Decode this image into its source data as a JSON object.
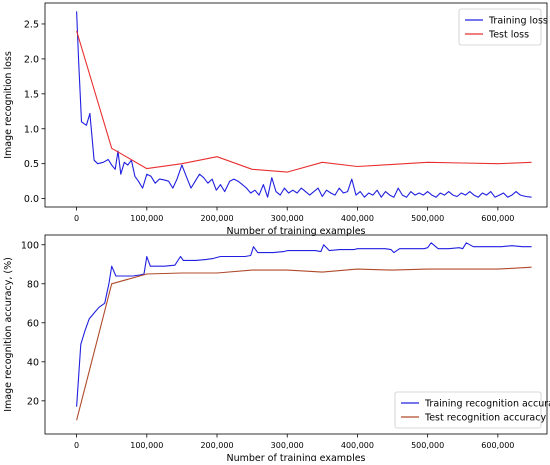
{
  "chart_data": [
    {
      "type": "line",
      "xlabel": "Number of training examples",
      "ylabel": "Image recognition loss",
      "xlim": [
        -45000,
        670000
      ],
      "ylim": [
        -0.12,
        2.8
      ],
      "xticks": [
        0,
        100000,
        200000,
        300000,
        400000,
        500000,
        600000
      ],
      "xtick_labels": [
        "0",
        "100,000",
        "200,000",
        "300,000",
        "400,000",
        "500,000",
        "600,000"
      ],
      "yticks": [
        0.0,
        0.5,
        1.0,
        1.5,
        2.0,
        2.5
      ],
      "ytick_labels": [
        "0.0",
        "0.5",
        "1.0",
        "1.5",
        "2.0",
        "2.5"
      ],
      "legend_position": "top-right",
      "series": [
        {
          "name": "Training loss",
          "color": "#2020e0",
          "x": [
            0,
            3000,
            7000,
            14000,
            19000,
            25000,
            30000,
            38000,
            45000,
            50000,
            55000,
            59000,
            63000,
            68000,
            73000,
            78000,
            83000,
            88000,
            94000,
            100000,
            106000,
            112000,
            118000,
            124000,
            131000,
            137000,
            143000,
            150000,
            157000,
            163000,
            169000,
            175000,
            181000,
            187000,
            193000,
            199000,
            205000,
            211000,
            218000,
            224000,
            230000,
            236000,
            242000,
            248000,
            254000,
            260000,
            266000,
            272000,
            278000,
            284000,
            290000,
            296000,
            302000,
            308000,
            314000,
            320000,
            326000,
            332000,
            338000,
            344000,
            350000,
            356000,
            362000,
            368000,
            374000,
            380000,
            386000,
            392000,
            398000,
            404000,
            410000,
            416000,
            422000,
            428000,
            434000,
            440000,
            446000,
            452000,
            458000,
            464000,
            470000,
            476000,
            482000,
            488000,
            494000,
            500000,
            506000,
            512000,
            518000,
            524000,
            530000,
            536000,
            542000,
            548000,
            554000,
            560000,
            566000,
            572000,
            578000,
            584000,
            590000,
            596000,
            602000,
            608000,
            614000,
            620000,
            626000,
            632000,
            640000,
            648000
          ],
          "values": [
            2.68,
            1.95,
            1.1,
            1.05,
            1.22,
            0.55,
            0.5,
            0.52,
            0.56,
            0.48,
            0.42,
            0.68,
            0.35,
            0.52,
            0.48,
            0.55,
            0.32,
            0.25,
            0.15,
            0.35,
            0.32,
            0.22,
            0.28,
            0.27,
            0.25,
            0.15,
            0.28,
            0.48,
            0.3,
            0.15,
            0.25,
            0.35,
            0.3,
            0.22,
            0.28,
            0.12,
            0.2,
            0.1,
            0.25,
            0.28,
            0.25,
            0.2,
            0.15,
            0.08,
            0.12,
            0.05,
            0.2,
            0.02,
            0.3,
            0.1,
            0.05,
            0.15,
            0.08,
            0.12,
            0.08,
            0.15,
            0.1,
            0.05,
            0.1,
            0.15,
            0.03,
            0.12,
            0.08,
            0.05,
            0.15,
            0.08,
            0.1,
            0.28,
            0.05,
            0.1,
            0.02,
            0.08,
            0.05,
            0.12,
            0.02,
            0.1,
            0.05,
            0.02,
            0.15,
            0.05,
            0.02,
            0.1,
            0.05,
            0.08,
            0.05,
            0.1,
            0.05,
            0.02,
            0.08,
            0.05,
            0.1,
            0.05,
            0.03,
            0.08,
            0.05,
            0.1,
            0.05,
            0.02,
            0.08,
            0.05,
            0.1,
            0.02,
            0.05,
            0.08,
            0.02,
            0.05,
            0.1,
            0.05,
            0.03,
            0.02
          ]
        },
        {
          "name": "Test loss",
          "color": "#e83030",
          "x": [
            0,
            50000,
            100000,
            150000,
            200000,
            250000,
            300000,
            350000,
            400000,
            450000,
            500000,
            550000,
            600000,
            648000
          ],
          "values": [
            2.4,
            0.72,
            0.43,
            0.5,
            0.6,
            0.42,
            0.38,
            0.52,
            0.46,
            0.49,
            0.52,
            0.51,
            0.5,
            0.52
          ]
        }
      ]
    },
    {
      "type": "line",
      "xlabel": "Number of training examples",
      "ylabel": "Image recognition accuracy, (%)",
      "xlim": [
        -45000,
        670000
      ],
      "ylim": [
        3,
        105
      ],
      "xticks": [
        0,
        100000,
        200000,
        300000,
        400000,
        500000,
        600000
      ],
      "xtick_labels": [
        "0",
        "100,000",
        "200,000",
        "300,000",
        "400,000",
        "500,000",
        "600,000"
      ],
      "yticks": [
        20,
        40,
        60,
        80,
        100
      ],
      "ytick_labels": [
        "20",
        "40",
        "60",
        "80",
        "100"
      ],
      "legend_position": "bottom-right",
      "series": [
        {
          "name": "Training recognition accuracy",
          "color": "#2020e0",
          "x": [
            0,
            6000,
            12000,
            18000,
            25000,
            32000,
            40000,
            46000,
            50000,
            56000,
            64000,
            72000,
            80000,
            90000,
            96000,
            100000,
            105000,
            115000,
            125000,
            140000,
            148000,
            152000,
            160000,
            170000,
            185000,
            195000,
            205000,
            215000,
            225000,
            240000,
            248000,
            252000,
            258000,
            268000,
            280000,
            295000,
            300000,
            308000,
            320000,
            340000,
            348000,
            352000,
            360000,
            375000,
            395000,
            400000,
            420000,
            440000,
            448000,
            452000,
            460000,
            480000,
            495000,
            500000,
            505000,
            515000,
            530000,
            545000,
            550000,
            555000,
            565000,
            580000,
            595000,
            605000,
            620000,
            635000,
            648000
          ],
          "values": [
            17,
            49,
            56,
            62,
            65,
            68,
            70,
            80,
            89,
            84,
            84,
            84,
            84,
            84.5,
            85,
            94,
            89,
            89,
            89,
            89.5,
            94,
            92,
            92,
            92,
            92.5,
            93,
            94,
            94,
            94,
            94,
            94.5,
            99,
            96,
            96,
            96,
            96.5,
            97,
            97,
            97,
            97,
            96.5,
            100,
            97,
            97.5,
            97.5,
            98,
            98,
            98,
            97.5,
            96,
            98,
            98,
            98,
            98.5,
            101,
            98,
            98,
            98.5,
            98,
            101,
            99,
            99,
            99,
            99,
            99.5,
            99,
            99
          ]
        },
        {
          "name": "Test recognition accuracy",
          "color": "#b04a2a",
          "x": [
            0,
            50000,
            100000,
            150000,
            200000,
            250000,
            300000,
            350000,
            400000,
            450000,
            500000,
            550000,
            600000,
            648000
          ],
          "values": [
            10,
            80,
            85,
            85.5,
            85.5,
            87,
            87,
            86,
            87.5,
            87,
            87.5,
            87.5,
            87.5,
            88.5
          ]
        }
      ]
    }
  ]
}
